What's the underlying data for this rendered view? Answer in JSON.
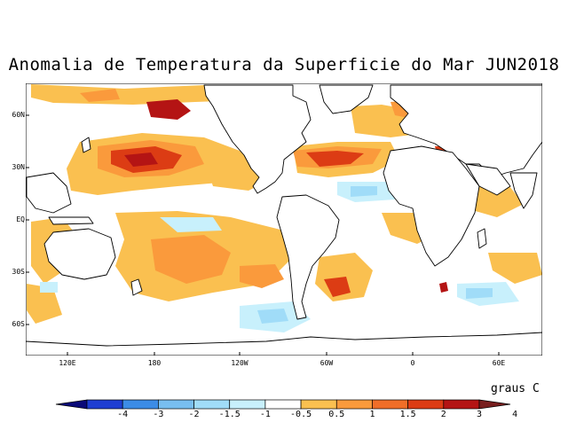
{
  "title": "Anomalia de Temperatura da Superficie do Mar JUN2018",
  "latitude_labels": [
    "60N",
    "30N",
    "EQ",
    "30S",
    "60S"
  ],
  "longitude_labels": [
    "120E",
    "180",
    "120W",
    "60W",
    "0",
    "60E"
  ],
  "units": "graus C",
  "colorbar": {
    "labels": [
      "-4",
      "-3",
      "-2",
      "-1.5",
      "-1",
      "-0.5",
      "0.5",
      "1",
      "1.5",
      "2",
      "3",
      "4"
    ],
    "colors": [
      "#0a0a78",
      "#1e3ed2",
      "#3c8ce6",
      "#78bef0",
      "#a0dcf8",
      "#c8f0fc",
      "#ffffff",
      "#fac050",
      "#fa9a3c",
      "#f06e28",
      "#dc3c14",
      "#b41414",
      "#781e1e"
    ]
  },
  "colors": {
    "weak_warm": "#fac050",
    "moderate_warm": "#fa9a3c",
    "strong_warm": "#dc3c14",
    "very_strong_warm": "#b41414",
    "weak_cool": "#c8f0fc",
    "moderate_cool": "#a0dcf8",
    "cool": "#78bef0",
    "strong_cool": "#3c8ce6",
    "ocean_neutral": "#ffffff",
    "land": "#ffffff",
    "coastline": "#000000"
  }
}
